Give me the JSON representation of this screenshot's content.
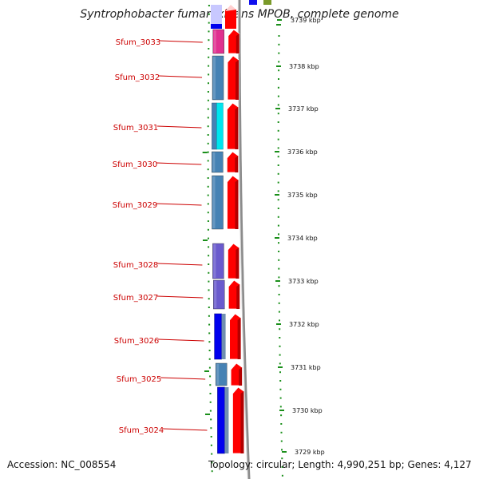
{
  "title": "Syntrophobacter fumaroxidans MPOB, complete genome",
  "footer": {
    "accession": "Accession: NC_008554",
    "topology": "Topology: circular; Length: 4,990,251 bp; Genes: 4,127"
  },
  "genes": [
    {
      "name": "Sfum_3033",
      "color": "#e0308f"
    },
    {
      "name": "Sfum_3032",
      "color": "#4682b4"
    },
    {
      "name": "Sfum_3031",
      "color": "#00e5ee"
    },
    {
      "name": "Sfum_3030",
      "color": "#4682b4"
    },
    {
      "name": "Sfum_3029",
      "color": "#4682b4"
    },
    {
      "name": "Sfum_3028",
      "color": "#6a5acd"
    },
    {
      "name": "Sfum_3027",
      "color": "#6a5acd"
    },
    {
      "name": "Sfum_3026",
      "color": "#0000ee"
    },
    {
      "name": "Sfum_3025",
      "color": "#4682b4"
    },
    {
      "name": "Sfum_3024",
      "color": "#0000ee"
    }
  ],
  "ruler": [
    "3739 kbp",
    "3738 kbp",
    "3737 kbp",
    "3736 kbp",
    "3735 kbp",
    "3734 kbp",
    "3733 kbp",
    "3732 kbp",
    "3731 kbp",
    "3730 kbp",
    "3729 kbp"
  ],
  "colors": {
    "forward_strand": "#ff0000",
    "backbone": "#8c8c8c",
    "tick_green": "#1a8f1a",
    "label_red": "#cc0000"
  }
}
